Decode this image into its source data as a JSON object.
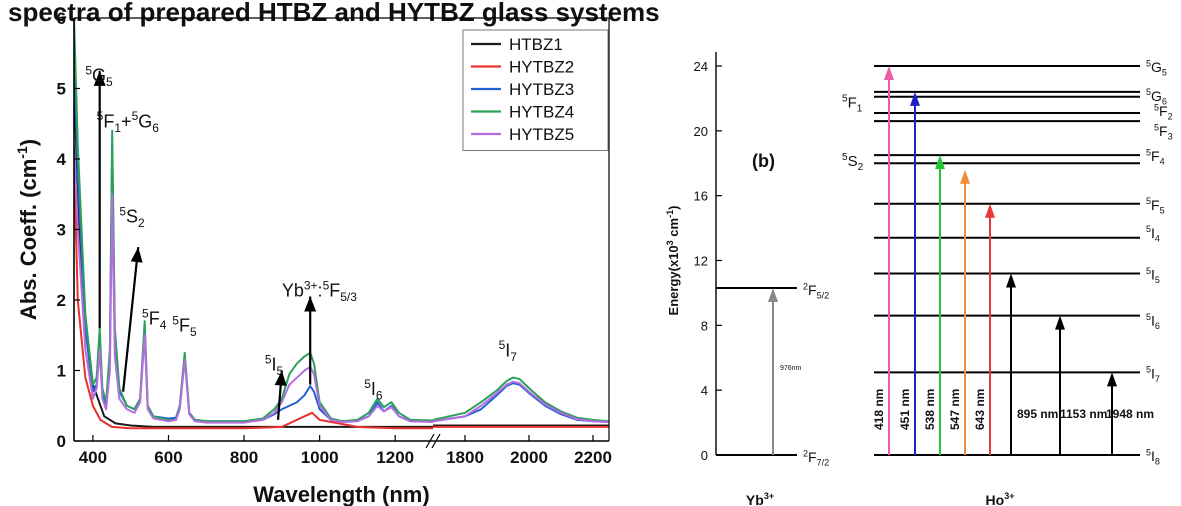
{
  "header_text": "spectra of prepared HTBZ and HYTBZ glass systems",
  "chart_data": [
    {
      "type": "line",
      "panel": "a",
      "xlabel": "Wavelength (nm)",
      "ylabel": "Abs. Coeff. (cm",
      "ylabel_sup": "-1",
      "ylabel_end": ")",
      "xlim": [
        350,
        2250
      ],
      "ylim": [
        0,
        6
      ],
      "axis_break": [
        1300,
        1700
      ],
      "xticks": [
        400,
        600,
        800,
        1000,
        1200,
        1800,
        2000,
        2200
      ],
      "yticks": [
        0,
        1,
        2,
        3,
        4,
        5,
        6
      ],
      "grid": false,
      "legend_position": "top-right",
      "series": [
        {
          "name": "HTBZ1",
          "color": "#1a1a1a",
          "x": [
            350,
            370,
            400,
            430,
            460,
            500,
            560,
            620,
            700,
            800,
            860,
            900,
            950,
            1000,
            1050,
            1100,
            1150,
            1200,
            1250,
            1300,
            1700,
            1800,
            1900,
            1950,
            2000,
            2100,
            2250
          ],
          "y": [
            5.0,
            2.2,
            0.8,
            0.35,
            0.25,
            0.22,
            0.2,
            0.2,
            0.2,
            0.2,
            0.2,
            0.2,
            0.2,
            0.2,
            0.2,
            0.2,
            0.2,
            0.2,
            0.2,
            0.2,
            0.22,
            0.22,
            0.22,
            0.22,
            0.22,
            0.22,
            0.22
          ]
        },
        {
          "name": "HYTBZ2",
          "color": "#e8302c",
          "x": [
            350,
            360,
            380,
            400,
            420,
            450,
            500,
            600,
            700,
            800,
            900,
            960,
            980,
            1000,
            1100,
            1200,
            1300,
            1700,
            1800,
            1900,
            1950,
            2000,
            2100,
            2250
          ],
          "y": [
            4.0,
            2.0,
            0.9,
            0.5,
            0.3,
            0.2,
            0.18,
            0.18,
            0.18,
            0.18,
            0.2,
            0.35,
            0.4,
            0.3,
            0.2,
            0.18,
            0.18,
            0.2,
            0.2,
            0.2,
            0.2,
            0.2,
            0.2,
            0.2
          ]
        },
        {
          "name": "HYTBZ3",
          "color": "#2461d6",
          "x": [
            350,
            360,
            380,
            400,
            410,
            418,
            425,
            435,
            445,
            451,
            458,
            470,
            480,
            490,
            510,
            525,
            537,
            545,
            560,
            600,
            620,
            630,
            643,
            655,
            670,
            700,
            800,
            850,
            880,
            900,
            920,
            940,
            960,
            975,
            985,
            1000,
            1030,
            1060,
            1100,
            1130,
            1153,
            1170,
            1190,
            1210,
            1240,
            1300,
            1700,
            1800,
            1850,
            1900,
            1930,
            1950,
            1970,
            2000,
            2050,
            2100,
            2150,
            2200,
            2250
          ],
          "y": [
            5.6,
            3.8,
            1.6,
            0.7,
            0.8,
            1.5,
            0.7,
            0.5,
            1.2,
            4.2,
            1.5,
            0.7,
            0.6,
            0.5,
            0.45,
            0.6,
            1.6,
            0.5,
            0.35,
            0.32,
            0.33,
            0.5,
            1.2,
            0.4,
            0.3,
            0.28,
            0.28,
            0.3,
            0.38,
            0.45,
            0.5,
            0.55,
            0.65,
            0.78,
            0.7,
            0.45,
            0.3,
            0.28,
            0.29,
            0.35,
            0.55,
            0.42,
            0.5,
            0.35,
            0.28,
            0.28,
            0.28,
            0.35,
            0.45,
            0.65,
            0.78,
            0.82,
            0.8,
            0.68,
            0.5,
            0.38,
            0.3,
            0.28,
            0.27
          ]
        },
        {
          "name": "HYTBZ4",
          "color": "#2aa058",
          "x": [
            350,
            360,
            380,
            400,
            410,
            418,
            425,
            435,
            445,
            451,
            458,
            470,
            480,
            490,
            510,
            525,
            537,
            545,
            560,
            600,
            620,
            630,
            643,
            655,
            670,
            700,
            800,
            850,
            880,
            900,
            920,
            940,
            960,
            975,
            985,
            1000,
            1030,
            1060,
            1100,
            1130,
            1153,
            1170,
            1190,
            1210,
            1240,
            1300,
            1700,
            1800,
            1850,
            1900,
            1930,
            1950,
            1970,
            2000,
            2050,
            2100,
            2150,
            2200,
            2250
          ],
          "y": [
            6.0,
            4.2,
            1.8,
            0.8,
            0.9,
            1.6,
            0.75,
            0.55,
            1.3,
            4.4,
            1.6,
            0.75,
            0.62,
            0.5,
            0.45,
            0.6,
            1.7,
            0.5,
            0.35,
            0.3,
            0.3,
            0.5,
            1.25,
            0.4,
            0.3,
            0.28,
            0.28,
            0.32,
            0.45,
            0.6,
            0.95,
            1.1,
            1.2,
            1.25,
            1.1,
            0.55,
            0.32,
            0.28,
            0.3,
            0.4,
            0.6,
            0.48,
            0.55,
            0.4,
            0.3,
            0.29,
            0.3,
            0.4,
            0.55,
            0.72,
            0.85,
            0.9,
            0.88,
            0.75,
            0.55,
            0.42,
            0.33,
            0.3,
            0.28
          ]
        },
        {
          "name": "HYTBZ5",
          "color": "#b46ee0",
          "x": [
            350,
            360,
            380,
            400,
            410,
            418,
            425,
            435,
            445,
            451,
            458,
            470,
            480,
            490,
            510,
            525,
            537,
            545,
            560,
            600,
            620,
            630,
            643,
            655,
            670,
            700,
            800,
            850,
            880,
            900,
            920,
            940,
            960,
            975,
            985,
            1000,
            1030,
            1060,
            1100,
            1130,
            1153,
            1170,
            1190,
            1210,
            1240,
            1300,
            1700,
            1800,
            1850,
            1900,
            1930,
            1950,
            1970,
            2000,
            2050,
            2100,
            2150,
            2200,
            2250
          ],
          "y": [
            4.2,
            3.0,
            1.3,
            0.6,
            0.75,
            1.3,
            0.6,
            0.45,
            1.0,
            3.5,
            1.2,
            0.6,
            0.52,
            0.45,
            0.4,
            0.55,
            1.5,
            0.45,
            0.32,
            0.28,
            0.3,
            0.45,
            1.15,
            0.38,
            0.28,
            0.26,
            0.26,
            0.3,
            0.4,
            0.55,
            0.8,
            0.9,
            1.0,
            1.05,
            0.95,
            0.5,
            0.3,
            0.27,
            0.28,
            0.35,
            0.5,
            0.42,
            0.48,
            0.35,
            0.28,
            0.27,
            0.28,
            0.35,
            0.5,
            0.68,
            0.8,
            0.84,
            0.82,
            0.7,
            0.52,
            0.4,
            0.31,
            0.28,
            0.27
          ]
        }
      ],
      "annotations": [
        {
          "base": "5",
          "term": "G",
          "sub": "5",
          "x": 380,
          "y": 5.1
        },
        {
          "base": "5",
          "term": "F",
          "sub": "1",
          "mid": "+",
          "base2": "5",
          "term2": "G",
          "sub2": "6",
          "x": 410,
          "y": 4.45
        },
        {
          "base": "5",
          "term": "S",
          "sub": "2",
          "x": 470,
          "y": 3.1
        },
        {
          "base": "5",
          "term": "F",
          "sub": "4",
          "x": 530,
          "y": 1.65
        },
        {
          "base": "5",
          "term": "F",
          "sub": "5",
          "x": 610,
          "y": 1.55
        },
        {
          "base": "5",
          "term": "I",
          "sub": "5",
          "x": 855,
          "y": 1.0
        },
        {
          "base": "5",
          "term": "I",
          "sub": "6",
          "x": 1118,
          "y": 0.65
        },
        {
          "base": "5",
          "term": "I",
          "sub": "7",
          "x": 1905,
          "y": 1.2
        },
        {
          "label": "Yb",
          "sup": "3+",
          "mid": ":",
          "base2": "5",
          "term2": "F",
          "sub2": "5/3",
          "x": 900,
          "y": 2.05
        }
      ],
      "arrows": [
        {
          "x1": 418,
          "y1": 1.6,
          "x2": 418,
          "y2": 5.25
        },
        {
          "x1": 480,
          "y1": 0.7,
          "x2": 520,
          "y2": 2.75
        },
        {
          "x1": 890,
          "y1": 0.3,
          "x2": 900,
          "y2": 1.0
        },
        {
          "x1": 975,
          "y1": 0.8,
          "x2": 975,
          "y2": 2.05
        }
      ]
    },
    {
      "type": "diagram",
      "panel": "b",
      "panel_label": "(b)",
      "ylabel": "Energy(x10",
      "ylabel_sup": "3",
      "ylabel_end": " cm",
      "ylabel_sup2": "-1",
      "ylabel_end2": ")",
      "ylim": [
        0,
        24
      ],
      "yticks": [
        0,
        4,
        8,
        12,
        16,
        20,
        24
      ],
      "ions": [
        {
          "label": "Yb",
          "sup": "3+",
          "levels": [
            {
              "energy": 0,
              "base": "2",
              "term": "F",
              "sub": "7/2"
            },
            {
              "energy": 10.3,
              "base": "2",
              "term": "F",
              "sub": "5/2"
            }
          ]
        },
        {
          "label": "Ho",
          "sup": "3+",
          "levels": [
            {
              "energy": 0,
              "base": "5",
              "term": "I",
              "sub": "8"
            },
            {
              "energy": 5.1,
              "base": "5",
              "term": "I",
              "sub": "7"
            },
            {
              "energy": 8.6,
              "base": "5",
              "term": "I",
              "sub": "6"
            },
            {
              "energy": 11.2,
              "base": "5",
              "term": "I",
              "sub": "5"
            },
            {
              "energy": 13.4,
              "base": "5",
              "term": "I",
              "sub": "4"
            },
            {
              "energy": 15.5,
              "base": "5",
              "term": "F",
              "sub": "5"
            },
            {
              "energy": 18.5,
              "base": "5",
              "term": "F",
              "sub": "4"
            },
            {
              "energy": 18.0
            },
            {
              "energy": 20.6,
              "base": "5",
              "term": "F",
              "sub": "3"
            },
            {
              "energy": 21.1,
              "base": "5",
              "term": "F",
              "sub": "2"
            },
            {
              "energy": 22.1,
              "base": "5",
              "term": "G",
              "sub": "6"
            },
            {
              "energy": 22.4
            },
            {
              "energy": 24.0,
              "base": "5",
              "term": "G",
              "sub": "5"
            }
          ]
        }
      ],
      "left_labels": [
        {
          "base": "5",
          "term": "F",
          "sub": "1",
          "energy": 21.8
        },
        {
          "base": "5",
          "term": "S",
          "sub": "2",
          "energy": 18.2
        }
      ],
      "yb_transition": {
        "label": "976nm",
        "from": 0,
        "to": 10.3,
        "color": "#888888"
      },
      "transitions": [
        {
          "label": "418 nm",
          "from": 0,
          "to": 24.0,
          "color": "#e85ca8"
        },
        {
          "label": "451 nm",
          "from": 0,
          "to": 22.4,
          "color": "#2020c8"
        },
        {
          "label": "538 nm",
          "from": 0,
          "to": 18.5,
          "color": "#22c830"
        },
        {
          "label": "547 nm",
          "from": 0,
          "to": 17.6,
          "color": "#f08c3a"
        },
        {
          "label": "643 nm",
          "from": 0,
          "to": 15.5,
          "color": "#e83838"
        },
        {
          "label": "895 nm",
          "from": 0,
          "to": 11.2,
          "color": "#000000"
        },
        {
          "label": "1153 nm",
          "from": 0,
          "to": 8.6,
          "color": "#000000"
        },
        {
          "label": "1948 nm",
          "from": 0,
          "to": 5.1,
          "color": "#000000"
        }
      ]
    }
  ]
}
